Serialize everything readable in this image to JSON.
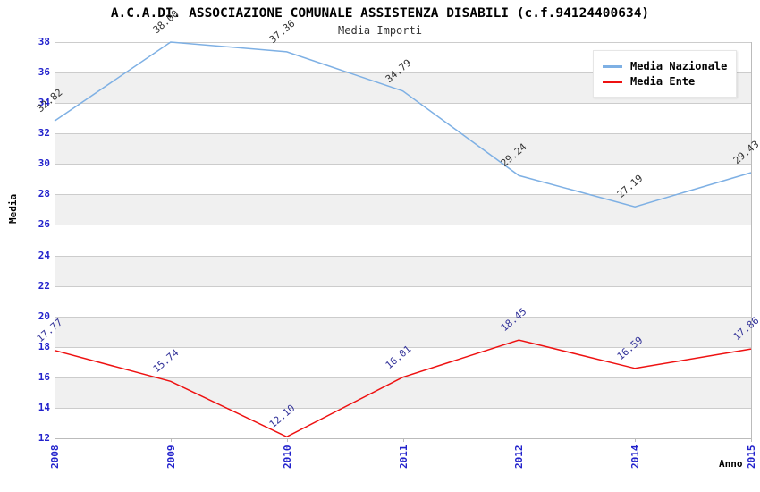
{
  "title": "A.C.A.DI. ASSOCIAZIONE COMUNALE ASSISTENZA DISABILI (c.f.94124400634)",
  "subtitle": "Media Importi",
  "chart_data": {
    "type": "line",
    "categories": [
      "2008",
      "2009",
      "2010",
      "2011",
      "2012",
      "2014",
      "2015"
    ],
    "series": [
      {
        "name": "Media Nazionale",
        "color": "#7EB0E4",
        "label_color": "#333333",
        "values": [
          32.82,
          38.0,
          37.36,
          34.79,
          29.24,
          27.19,
          29.43
        ]
      },
      {
        "name": "Media Ente",
        "color": "#EE1111",
        "label_color": "#333399",
        "values": [
          17.77,
          15.74,
          12.1,
          16.01,
          18.45,
          16.59,
          17.86
        ]
      }
    ],
    "xlabel": "Anno",
    "ylabel": "Media",
    "ylim": [
      12,
      38
    ],
    "ytick_step": 2,
    "grid": true,
    "legend_position": "top-right",
    "tick_label_color": "#2222CC",
    "grid_color": "#CCCCCC",
    "band_colors": [
      "#FFFFFF",
      "#F0F0F0"
    ]
  }
}
